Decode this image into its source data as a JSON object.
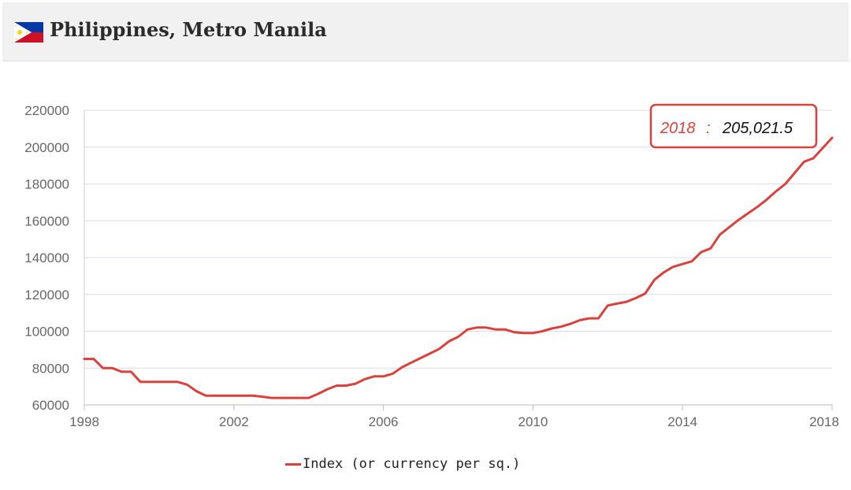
{
  "header": {
    "title": "Philippines, Metro Manila",
    "flag": "philippines-flag-icon"
  },
  "colors": {
    "series": "#d9413c",
    "grid": "#dcdcec",
    "axis_text": "#666666",
    "header_bg": "#f1f1f1"
  },
  "tooltip": {
    "year": "2018",
    "separator": ":",
    "value": "205,021.5"
  },
  "legend": {
    "label": "Index (or currency per sq.)"
  },
  "chart_data": {
    "type": "line",
    "title": "Philippines, Metro Manila",
    "xlabel": "",
    "ylabel": "",
    "xlim": [
      1998,
      2018
    ],
    "ylim": [
      60000,
      220000
    ],
    "x_ticks": [
      1998,
      2002,
      2006,
      2010,
      2014,
      2018
    ],
    "x_tick_labels": [
      "1998",
      "2002",
      "2006",
      "2010",
      "2014",
      "2018"
    ],
    "y_ticks": [
      60000,
      80000,
      100000,
      120000,
      140000,
      160000,
      180000,
      200000,
      220000
    ],
    "y_tick_labels": [
      "60000",
      "80000",
      "100000",
      "120000",
      "140000",
      "160000",
      "180000",
      "200000",
      "220000"
    ],
    "grid": "horizontal",
    "legend_position": "bottom-center",
    "series": [
      {
        "name": "Index (or currency per sq.)",
        "x": [
          1998.0,
          1998.25,
          1998.5,
          1998.75,
          1999.0,
          1999.25,
          1999.5,
          1999.75,
          2000.0,
          2000.25,
          2000.5,
          2000.75,
          2001.0,
          2001.25,
          2001.5,
          2001.75,
          2002.0,
          2002.25,
          2002.5,
          2002.75,
          2003.0,
          2003.25,
          2003.5,
          2003.75,
          2004.0,
          2004.25,
          2004.5,
          2004.75,
          2005.0,
          2005.25,
          2005.5,
          2005.75,
          2006.0,
          2006.25,
          2006.5,
          2006.75,
          2007.0,
          2007.25,
          2007.5,
          2007.75,
          2008.0,
          2008.25,
          2008.5,
          2008.75,
          2009.0,
          2009.25,
          2009.5,
          2009.75,
          2010.0,
          2010.25,
          2010.5,
          2010.75,
          2011.0,
          2011.25,
          2011.5,
          2011.75,
          2012.0,
          2012.25,
          2012.5,
          2012.75,
          2013.0,
          2013.25,
          2013.5,
          2013.75,
          2014.0,
          2014.25,
          2014.5,
          2014.75,
          2015.0,
          2015.25,
          2015.5,
          2015.75,
          2016.0,
          2016.25,
          2016.5,
          2016.75,
          2017.0,
          2017.25,
          2017.5,
          2017.75,
          2018.0
        ],
        "y": [
          85000,
          85000,
          80000,
          80000,
          78000,
          78000,
          72500,
          72500,
          72500,
          72500,
          72500,
          71000,
          67500,
          65000,
          65000,
          65000,
          65000,
          65000,
          65000,
          64500,
          63800,
          63800,
          63800,
          63800,
          63800,
          66000,
          68500,
          70500,
          70500,
          71500,
          74000,
          75500,
          75500,
          77000,
          80500,
          83000,
          85500,
          88000,
          90500,
          94500,
          97000,
          101000,
          102000,
          102000,
          101000,
          101000,
          99500,
          99000,
          99000,
          100000,
          101500,
          102500,
          104000,
          106000,
          107000,
          107000,
          114000,
          115000,
          116000,
          118000,
          120500,
          128000,
          132000,
          135000,
          136500,
          138000,
          143000,
          145000,
          152500,
          156500,
          160500,
          164000,
          167500,
          171500,
          176000,
          180000,
          186000,
          192000,
          194000,
          199500,
          205021.5
        ]
      }
    ]
  }
}
